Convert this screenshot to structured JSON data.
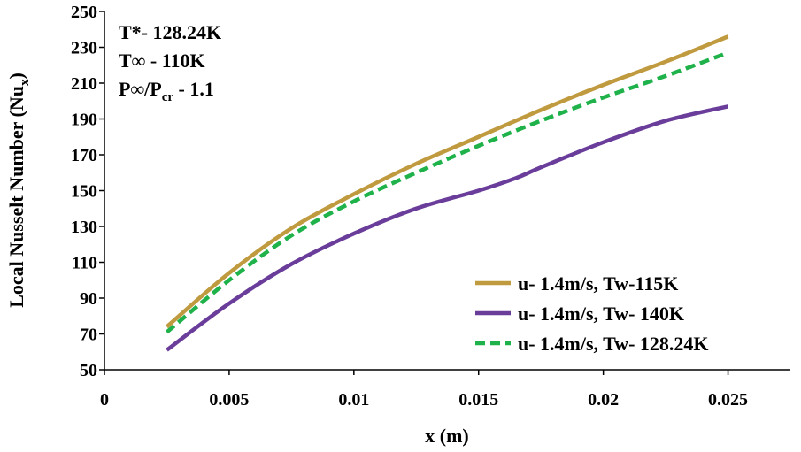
{
  "chart_data": {
    "type": "line",
    "title": "",
    "xlabel": "x (m)",
    "ylabel": {
      "text": "Local Nusselt Number (Nu",
      "sub": "x",
      "close": ")"
    },
    "xlim": [
      0,
      0.0275
    ],
    "ylim": [
      50,
      250
    ],
    "x_ticks": [
      0,
      0.005,
      0.01,
      0.015,
      0.02,
      0.025
    ],
    "x_tick_labels": [
      "0",
      "0.005",
      "0.01",
      "0.015",
      "0.02",
      "0.025"
    ],
    "y_ticks": [
      50,
      70,
      90,
      110,
      130,
      150,
      170,
      190,
      210,
      230,
      250
    ],
    "y_tick_labels": [
      "50",
      "70",
      "90",
      "110",
      "130",
      "150",
      "170",
      "190",
      "210",
      "230",
      "250"
    ],
    "grid": false,
    "legend_position": "bottom-right",
    "annotations": [
      {
        "text": "T*- 128.24K"
      },
      {
        "text": "T∞ - 110K"
      },
      {
        "text": "P∞/P",
        "sub": "cr",
        "suffix": " - 1.1"
      }
    ],
    "series": [
      {
        "name": "u- 1.4m/s, Tw-115K",
        "color": "#c09a3e",
        "dash": "solid",
        "x": [
          0.0025,
          0.005,
          0.0075,
          0.01,
          0.0125,
          0.015,
          0.0175,
          0.02,
          0.0225,
          0.025
        ],
        "y": [
          74,
          104,
          129,
          148,
          165,
          180,
          195,
          209,
          222,
          236
        ]
      },
      {
        "name": "u- 1.4m/s, Tw- 140K",
        "color": "#6a3d9a",
        "dash": "solid",
        "x": [
          0.0025,
          0.005,
          0.0075,
          0.01,
          0.0125,
          0.015,
          0.0165,
          0.0175,
          0.02,
          0.0225,
          0.025
        ],
        "y": [
          61,
          87,
          109,
          126,
          140,
          150,
          157,
          163,
          177,
          189,
          197
        ]
      },
      {
        "name": "u- 1.4m/s, Tw- 128.24K",
        "color": "#1fb24a",
        "dash": "dashed",
        "x": [
          0.0025,
          0.005,
          0.0075,
          0.01,
          0.0125,
          0.015,
          0.0175,
          0.02,
          0.0225,
          0.025
        ],
        "y": [
          71,
          100,
          125,
          144,
          160,
          175,
          189,
          202,
          214,
          227
        ]
      }
    ]
  }
}
